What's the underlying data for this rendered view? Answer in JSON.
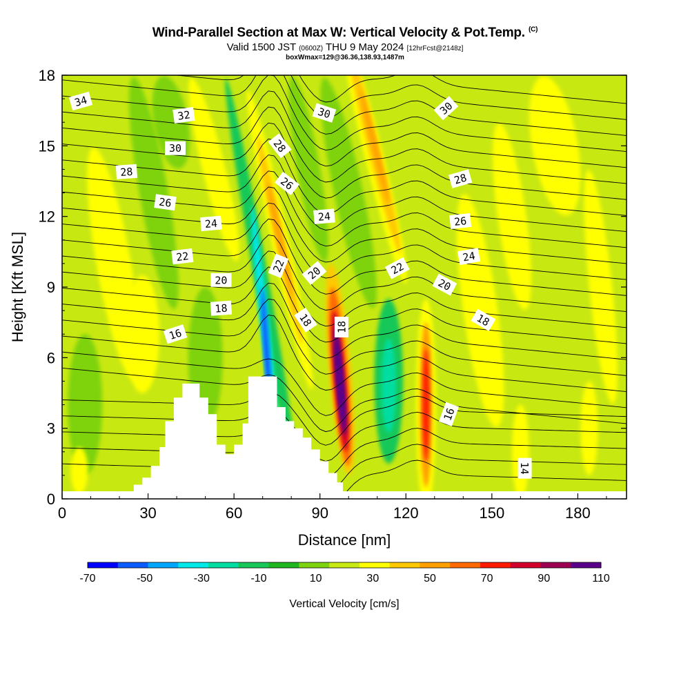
{
  "title": {
    "line1": "Wind-Parallel Section at Max W: Vertical Velocity & Pot.Temp.",
    "copyright": "(C)",
    "line2_a": "Valid 1500 JST",
    "line2_b": "(0600Z)",
    "line2_c": "THU 9 May 2024",
    "line2_d": "[12hrFcst@2148z]",
    "line3": "boxWmax=129@36.36,138.93,1487m"
  },
  "chart_data": {
    "type": "heatmap",
    "xlabel": "Distance [nm]",
    "ylabel": "Height [Kft MSL]",
    "xlim": [
      0,
      197
    ],
    "ylim": [
      0,
      18
    ],
    "xticks": [
      0,
      30,
      60,
      90,
      120,
      150,
      180
    ],
    "yticks": [
      0,
      3,
      6,
      9,
      12,
      15,
      18
    ],
    "background_level": "0 to 10",
    "colorbar": {
      "title": "Vertical Velocity [cm/s]",
      "tick_labels": [
        "-70",
        "-50",
        "-30",
        "-10",
        "10",
        "30",
        "50",
        "70",
        "90",
        "110"
      ],
      "colors": [
        "#0000ff",
        "#0b5bff",
        "#00a6ff",
        "#00e8e8",
        "#00dda0",
        "#17c858",
        "#1fb61f",
        "#7ed311",
        "#c8e812",
        "#ffff00",
        "#ffc800",
        "#ffa000",
        "#ff6a00",
        "#ff1a00",
        "#d2002a",
        "#9c0050",
        "#5a0089"
      ]
    },
    "w_features": [
      {
        "x": 71,
        "z": 6.0,
        "min_w": -70
      },
      {
        "x": 76,
        "z": 11.0,
        "max_w": 40
      },
      {
        "x": 97,
        "z": 5.0,
        "max_w": 110
      },
      {
        "x": 109,
        "z": 15.0,
        "max_w": 40
      },
      {
        "x": 114,
        "z": 5.0,
        "min_w": -30
      },
      {
        "x": 127,
        "z": 4.0,
        "max_w": 60
      }
    ],
    "terrain": [
      [
        22,
        0
      ],
      [
        22,
        0.3
      ],
      [
        25,
        0.3
      ],
      [
        25,
        0.6
      ],
      [
        28,
        0.6
      ],
      [
        28,
        0.9
      ],
      [
        31,
        0.9
      ],
      [
        31,
        1.4
      ],
      [
        34,
        1.4
      ],
      [
        34,
        2.2
      ],
      [
        36,
        2.2
      ],
      [
        36,
        3.3
      ],
      [
        39,
        3.3
      ],
      [
        39,
        4.3
      ],
      [
        42,
        4.3
      ],
      [
        42,
        4.9
      ],
      [
        48,
        4.9
      ],
      [
        48,
        4.3
      ],
      [
        51,
        4.3
      ],
      [
        51,
        3.6
      ],
      [
        54,
        3.6
      ],
      [
        54,
        2.3
      ],
      [
        57,
        2.3
      ],
      [
        57,
        1.9
      ],
      [
        60,
        1.9
      ],
      [
        60,
        2.3
      ],
      [
        63,
        2.3
      ],
      [
        63,
        3.2
      ],
      [
        65,
        3.2
      ],
      [
        65,
        5.2
      ],
      [
        75,
        5.2
      ],
      [
        75,
        3.9
      ],
      [
        78,
        3.9
      ],
      [
        78,
        3.3
      ],
      [
        81,
        3.3
      ],
      [
        81,
        3.0
      ],
      [
        84,
        3.0
      ],
      [
        84,
        2.6
      ],
      [
        87,
        2.6
      ],
      [
        87,
        2.1
      ],
      [
        90,
        2.1
      ],
      [
        90,
        1.6
      ],
      [
        93,
        1.6
      ],
      [
        93,
        1.1
      ],
      [
        96,
        1.1
      ],
      [
        96,
        0.7
      ],
      [
        98,
        0.7
      ],
      [
        98,
        0
      ]
    ],
    "contour_labels": [
      {
        "text": "34",
        "x": 6.5,
        "z": 16.9,
        "rot": -16
      },
      {
        "text": "32",
        "x": 42.5,
        "z": 16.3,
        "rot": -8
      },
      {
        "text": "30",
        "x": 39.5,
        "z": 14.9,
        "rot": 0
      },
      {
        "text": "28",
        "x": 22.5,
        "z": 13.9,
        "rot": -4
      },
      {
        "text": "26",
        "x": 36,
        "z": 12.6,
        "rot": 8
      },
      {
        "text": "24",
        "x": 52,
        "z": 11.7,
        "rot": -5
      },
      {
        "text": "22",
        "x": 42,
        "z": 10.3,
        "rot": -7
      },
      {
        "text": "20",
        "x": 55.5,
        "z": 9.3,
        "rot": 0
      },
      {
        "text": "18",
        "x": 55.5,
        "z": 8.1,
        "rot": -4
      },
      {
        "text": "16",
        "x": 39.5,
        "z": 7.0,
        "rot": -18
      },
      {
        "text": "28",
        "x": 76,
        "z": 15.0,
        "rot": 52
      },
      {
        "text": "26",
        "x": 78.5,
        "z": 13.4,
        "rot": 38
      },
      {
        "text": "22",
        "x": 75.5,
        "z": 9.9,
        "rot": -68
      },
      {
        "text": "30",
        "x": 91.5,
        "z": 16.4,
        "rot": 18
      },
      {
        "text": "24",
        "x": 91.5,
        "z": 12.0,
        "rot": -5
      },
      {
        "text": "20",
        "x": 88,
        "z": 9.6,
        "rot": -40
      },
      {
        "text": "18",
        "x": 85,
        "z": 7.6,
        "rot": 56
      },
      {
        "text": "18",
        "x": 97.5,
        "z": 7.3,
        "rot": -90
      },
      {
        "text": "30",
        "x": 134,
        "z": 16.6,
        "rot": -42
      },
      {
        "text": "28",
        "x": 139,
        "z": 13.6,
        "rot": -16
      },
      {
        "text": "26",
        "x": 139,
        "z": 11.8,
        "rot": -6
      },
      {
        "text": "24",
        "x": 142,
        "z": 10.3,
        "rot": -10
      },
      {
        "text": "22",
        "x": 117,
        "z": 9.8,
        "rot": -28
      },
      {
        "text": "20",
        "x": 133.5,
        "z": 9.1,
        "rot": 28
      },
      {
        "text": "18",
        "x": 147,
        "z": 7.6,
        "rot": 30
      },
      {
        "text": "16",
        "x": 135,
        "z": 3.6,
        "rot": -70
      },
      {
        "text": "14",
        "x": 161.5,
        "z": 1.3,
        "rot": 90
      }
    ]
  }
}
